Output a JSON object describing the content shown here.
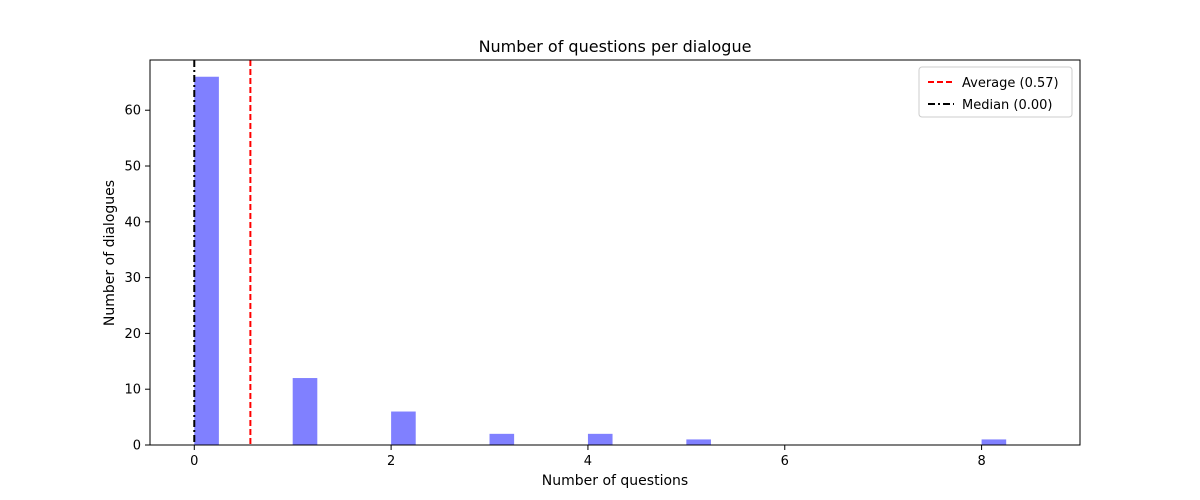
{
  "chart_data": {
    "type": "bar",
    "title": "Number of questions per dialogue",
    "xlabel": "Number of questions",
    "ylabel": "Number of dialogues",
    "xlim": [
      -0.45,
      9.0
    ],
    "ylim": [
      0,
      69
    ],
    "xticks": [
      0,
      2,
      4,
      6,
      8
    ],
    "yticks": [
      0,
      10,
      20,
      30,
      40,
      50,
      60
    ],
    "bar_color": "#8080ff",
    "bar_width": 0.25,
    "series": [
      {
        "x": [
          0,
          1,
          2,
          3,
          4,
          5,
          8
        ],
        "values": [
          66,
          12,
          6,
          2,
          2,
          1,
          1
        ]
      }
    ],
    "reference_lines": [
      {
        "label": "Average (0.57)",
        "x": 0.57,
        "color": "#ff0000",
        "style": "dashed"
      },
      {
        "label": "Median (0.00)",
        "x": 0.0,
        "color": "#000000",
        "style": "dashdot"
      }
    ],
    "legend_position": "top-right",
    "grid": false
  }
}
